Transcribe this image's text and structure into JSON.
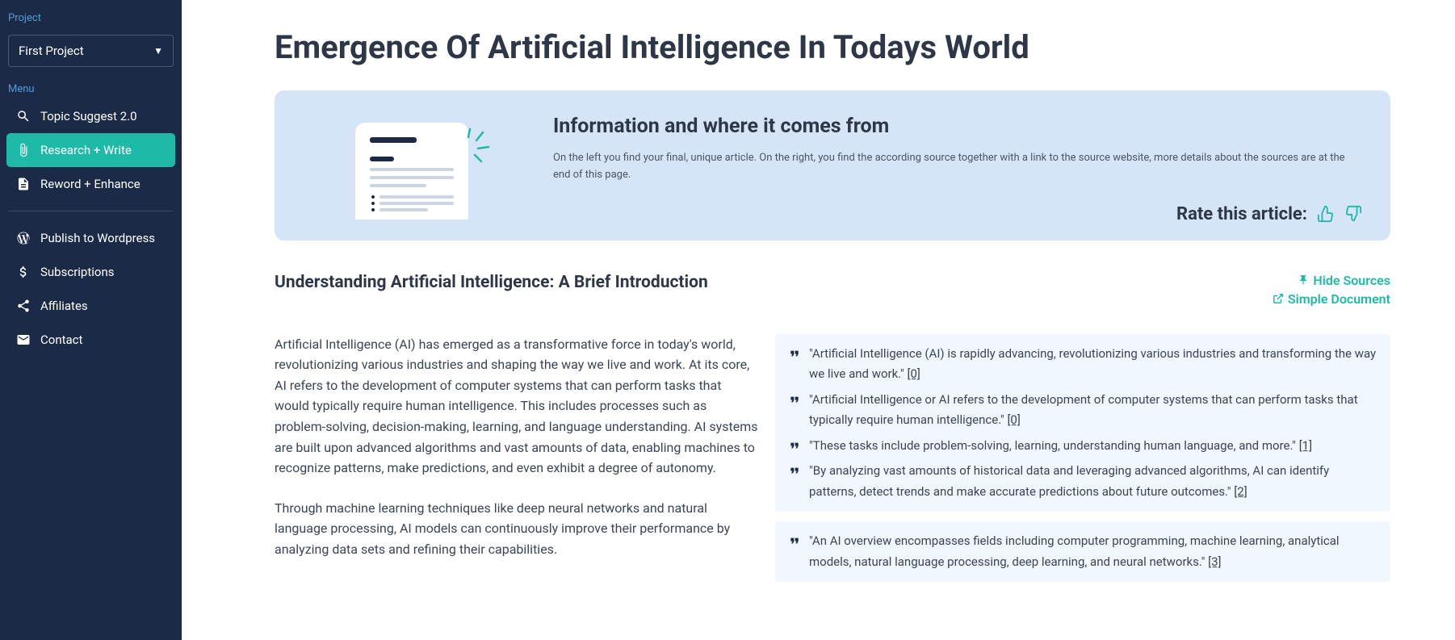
{
  "sidebar": {
    "project_label": "Project",
    "project_selected": "First Project",
    "menu_label": "Menu",
    "items": [
      {
        "label": "Topic Suggest 2.0"
      },
      {
        "label": "Research + Write"
      },
      {
        "label": "Reword + Enhance"
      },
      {
        "label": "Publish to Wordpress"
      },
      {
        "label": "Subscriptions"
      },
      {
        "label": "Affiliates"
      },
      {
        "label": "Contact"
      }
    ]
  },
  "colors": {
    "sidebar_bg": "#1b2a47",
    "accent": "#1fb9a8",
    "info_bg": "#d5e5f7",
    "source_bg": "#f0f7ff",
    "link_blue": "#4a9fd8",
    "text": "#2d3748"
  },
  "page": {
    "title": "Emergence Of Artificial Intelligence In Todays World",
    "info": {
      "title": "Information and where it comes from",
      "desc": "On the left you find your final, unique article. On the right, you find the according source together with a link to the source website, more details about the sources are at the end of this page.",
      "rate_label": "Rate this article:"
    },
    "actions": {
      "hide_sources": "Hide Sources",
      "simple_doc": "Simple Document"
    },
    "section_title": "Understanding Artificial Intelligence: A Brief Introduction",
    "paragraphs": [
      "Artificial Intelligence (AI) has emerged as a transformative force in today's world, revolutionizing various industries and shaping the way we live and work. At its core, AI refers to the development of computer systems that can perform tasks that would typically require human intelligence. This includes processes such as problem-solving, decision-making, learning, and language understanding. AI systems are built upon advanced algorithms and vast amounts of data, enabling machines to recognize patterns, make predictions, and even exhibit a degree of autonomy.",
      "Through machine learning techniques like deep neural networks and natural language processing, AI models can continuously improve their performance by analyzing data sets and refining their capabilities."
    ],
    "source_groups": [
      {
        "lines": [
          {
            "text": "\"Artificial Intelligence (AI) is rapidly advancing, revolutionizing various industries and transforming the way we live and work.\"",
            "cite": "[0]"
          },
          {
            "text": "\"Artificial Intelligence or AI refers to the development of computer systems that can perform tasks that typically require human intelligence.\"",
            "cite": "[0]"
          },
          {
            "text": "\"These tasks include problem-solving, learning, understanding human language, and more.\"",
            "cite": "[1]"
          },
          {
            "text": "\"By analyzing vast amounts of historical data and leveraging advanced algorithms, AI can identify patterns, detect trends and make accurate predictions about future outcomes.\"",
            "cite": "[2]"
          }
        ]
      },
      {
        "lines": [
          {
            "text": "\"An AI overview encompasses fields including computer programming, machine learning, analytical models, natural language processing, deep learning, and neural networks.\"",
            "cite": "[3]"
          }
        ]
      }
    ]
  }
}
